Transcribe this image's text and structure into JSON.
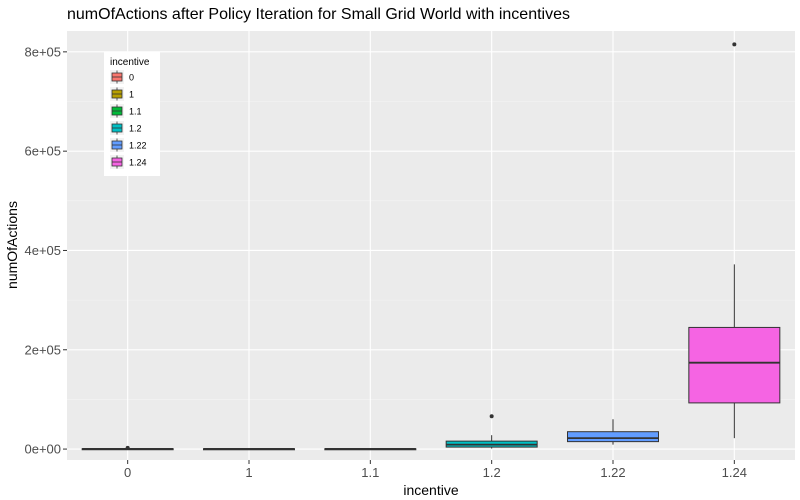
{
  "chart_data": {
    "type": "boxplot",
    "title": "numOfActions after Policy Iteration for Small Grid World with incentives",
    "xlabel": "incentive",
    "ylabel": "numOfActions",
    "categories": [
      "0",
      "1",
      "1.1",
      "1.2",
      "1.22",
      "1.24"
    ],
    "ylim": [
      -22000,
      842000
    ],
    "yticks": [
      0,
      200000,
      400000,
      600000,
      800000
    ],
    "ytick_labels": [
      "0e+00",
      "2e+05",
      "4e+05",
      "6e+05",
      "8e+05"
    ],
    "grid": true,
    "legend": {
      "title": "incentive",
      "position": "top-left",
      "entries": [
        "0",
        "1",
        "1.1",
        "1.2",
        "1.22",
        "1.24"
      ]
    },
    "colors": [
      "#F8766D",
      "#B79F00",
      "#00BA38",
      "#00BFC4",
      "#619CFF",
      "#F564E3"
    ],
    "boxes": [
      {
        "category": "0",
        "min": 0,
        "q1": 100,
        "median": 300,
        "q3": 700,
        "max": 1200,
        "outliers": [
          2500
        ]
      },
      {
        "category": "1",
        "min": 0,
        "q1": 100,
        "median": 250,
        "q3": 600,
        "max": 1000,
        "outliers": []
      },
      {
        "category": "1.1",
        "min": 0,
        "q1": 100,
        "median": 250,
        "q3": 600,
        "max": 1000,
        "outliers": []
      },
      {
        "category": "1.2",
        "min": 1000,
        "q1": 4000,
        "median": 9000,
        "q3": 16000,
        "max": 28000,
        "outliers": [
          66000
        ]
      },
      {
        "category": "1.22",
        "min": 9000,
        "q1": 15000,
        "median": 22000,
        "q3": 35000,
        "max": 60000,
        "outliers": []
      },
      {
        "category": "1.24",
        "min": 22000,
        "q1": 93000,
        "median": 174000,
        "q3": 245000,
        "max": 372000,
        "outliers": [
          815000
        ]
      }
    ]
  }
}
